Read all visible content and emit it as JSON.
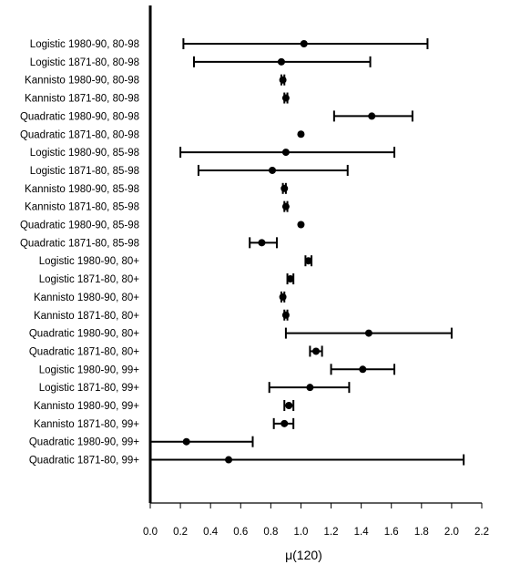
{
  "chart_data": {
    "type": "forest",
    "title": "",
    "xlabel": "μ(120)",
    "ylabel": "",
    "xlim": [
      0.0,
      2.2
    ],
    "xticks": [
      "0.0",
      "0.2",
      "0.4",
      "0.6",
      "0.8",
      "1.0",
      "1.2",
      "1.4",
      "1.6",
      "1.8",
      "2.0",
      "2.2"
    ],
    "grid": false,
    "categories": [
      "Logistic 1980-90, 80-98",
      "Logistic 1871-80, 80-98",
      "Kannisto 1980-90, 80-98",
      "Kannisto 1871-80, 80-98",
      "Quadratic 1980-90, 80-98",
      "Quadratic 1871-80, 80-98",
      "Logistic 1980-90, 85-98",
      "Logistic 1871-80, 85-98",
      "Kannisto 1980-90, 85-98",
      "Kannisto 1871-80, 85-98",
      "Quadratic 1980-90, 85-98",
      "Quadratic 1871-80, 85-98",
      "Logistic 1980-90, 80+",
      "Logistic 1871-80, 80+",
      "Kannisto 1980-90, 80+",
      "Kannisto 1871-80, 80+",
      "Quadratic 1980-90, 80+",
      "Quadratic 1871-80, 80+",
      "Logistic 1980-90, 99+",
      "Logistic 1871-80, 99+",
      "Kannisto 1980-90, 99+",
      "Kannisto 1871-80, 99+",
      "Quadratic 1980-90, 99+",
      "Quadratic 1871-80, 99+"
    ],
    "estimates": [
      1.02,
      0.87,
      0.88,
      0.9,
      1.47,
      1.0,
      0.9,
      0.81,
      0.89,
      0.9,
      1.0,
      0.74,
      1.05,
      0.93,
      0.88,
      0.9,
      1.45,
      1.1,
      1.41,
      1.06,
      0.92,
      0.89,
      0.24,
      0.52
    ],
    "lower": [
      0.22,
      0.29,
      0.87,
      0.89,
      1.22,
      1.0,
      0.2,
      0.32,
      0.88,
      0.89,
      1.0,
      0.66,
      1.03,
      0.91,
      0.87,
      0.89,
      0.9,
      1.06,
      1.2,
      0.79,
      0.89,
      0.82,
      0.0,
      0.0
    ],
    "upper": [
      1.84,
      1.46,
      0.89,
      0.91,
      1.74,
      1.0,
      1.62,
      1.31,
      0.9,
      0.91,
      1.0,
      0.84,
      1.07,
      0.95,
      0.89,
      0.91,
      2.0,
      1.14,
      1.62,
      1.32,
      0.95,
      0.95,
      0.68,
      2.08
    ]
  }
}
